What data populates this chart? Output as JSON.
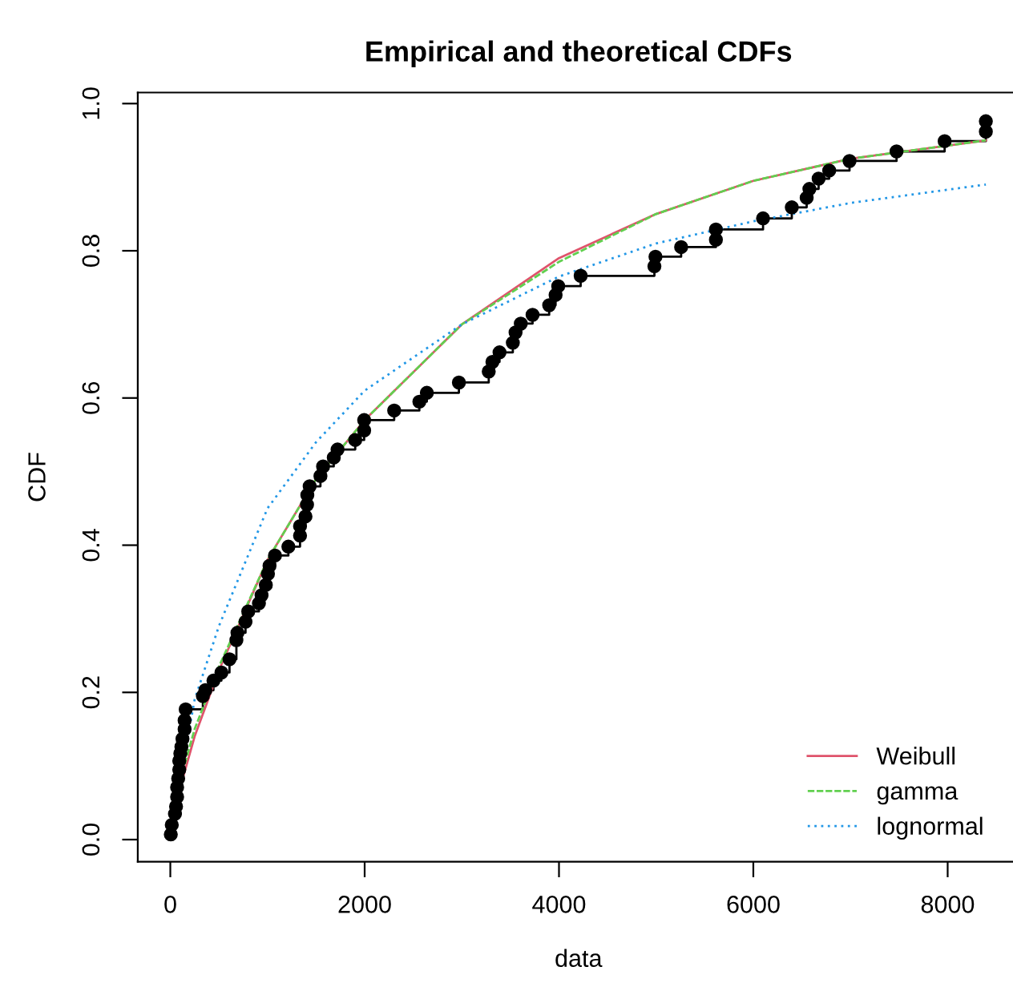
{
  "chart_data": {
    "type": "line",
    "title": "Empirical and theoretical CDFs",
    "xlabel": "data",
    "ylabel": "CDF",
    "xlim": [
      -335,
      8735
    ],
    "ylim": [
      -0.03,
      1.015
    ],
    "xticks": [
      0,
      2000,
      4000,
      6000,
      8000
    ],
    "yticks": [
      {
        "value": 0,
        "label": "0.0"
      },
      {
        "value": 0.2,
        "label": "0.2"
      },
      {
        "value": 0.4,
        "label": "0.4"
      },
      {
        "value": 0.6,
        "label": "0.6"
      },
      {
        "value": 0.8,
        "label": "0.8"
      },
      {
        "value": 1,
        "label": "1.0"
      }
    ],
    "grid": false,
    "legend": "bottom right",
    "series": [
      {
        "type": "step",
        "marker": "circle",
        "color": "#000000",
        "x": [
          5,
          15,
          48,
          59,
          70,
          70,
          81,
          92,
          92,
          103,
          114,
          125,
          147,
          147,
          158,
          335,
          361,
          444,
          526,
          609,
          680,
          691,
          774,
          802,
          912,
          939,
          983,
          1005,
          1021,
          1077,
          1215,
          1335,
          1335,
          1391,
          1407,
          1410,
          1434,
          1545,
          1572,
          1682,
          1721,
          1903,
          1995,
          1995,
          2304,
          2563,
          2640,
          2970,
          3277,
          3315,
          3388,
          3525,
          3553,
          3607,
          3728,
          3899,
          3965,
          3992,
          4223,
          4982,
          4993,
          5257,
          5615,
          5615,
          6100,
          6396,
          6549,
          6577,
          6672,
          6781,
          6990,
          7474,
          7969,
          8393,
          8393
        ],
        "values": [
          0.007,
          0.02,
          0.035,
          0.045,
          0.058,
          0.071,
          0.083,
          0.095,
          0.107,
          0.117,
          0.126,
          0.137,
          0.15,
          0.162,
          0.177,
          0.195,
          0.203,
          0.216,
          0.227,
          0.245,
          0.271,
          0.281,
          0.296,
          0.31,
          0.321,
          0.332,
          0.346,
          0.361,
          0.372,
          0.386,
          0.398,
          0.413,
          0.426,
          0.439,
          0.455,
          0.468,
          0.48,
          0.494,
          0.507,
          0.519,
          0.53,
          0.543,
          0.556,
          0.57,
          0.583,
          0.595,
          0.607,
          0.621,
          0.636,
          0.649,
          0.662,
          0.675,
          0.689,
          0.701,
          0.713,
          0.726,
          0.74,
          0.752,
          0.766,
          0.779,
          0.792,
          0.805,
          0.815,
          0.829,
          0.844,
          0.859,
          0.872,
          0.884,
          0.898,
          0.909,
          0.922,
          0.935,
          0.949,
          0.962,
          0.976
        ]
      },
      {
        "name": "Weibull",
        "line_style": "solid",
        "color": "#df536b",
        "x": [
          5,
          100,
          250,
          500,
          1000,
          1500,
          2000,
          3000,
          4000,
          5000,
          6000,
          7000,
          8393
        ],
        "values": [
          0.01,
          0.07,
          0.14,
          0.23,
          0.38,
          0.49,
          0.57,
          0.7,
          0.79,
          0.85,
          0.895,
          0.925,
          0.95
        ]
      },
      {
        "name": "gamma",
        "line_style": "dashed",
        "color": "#61d04f",
        "x": [
          5,
          100,
          250,
          500,
          1000,
          1500,
          2000,
          3000,
          4000,
          5000,
          6000,
          7000,
          8393
        ],
        "values": [
          0.02,
          0.08,
          0.15,
          0.235,
          0.38,
          0.49,
          0.57,
          0.7,
          0.785,
          0.85,
          0.895,
          0.925,
          0.95
        ]
      },
      {
        "name": "lognormal",
        "line_style": "dotted",
        "color": "#2297e6",
        "x": [
          5,
          100,
          250,
          500,
          1000,
          1500,
          2000,
          3000,
          4000,
          5000,
          6000,
          7000,
          8393
        ],
        "values": [
          0.0,
          0.08,
          0.19,
          0.29,
          0.45,
          0.54,
          0.61,
          0.7,
          0.765,
          0.81,
          0.84,
          0.865,
          0.89
        ]
      }
    ]
  }
}
